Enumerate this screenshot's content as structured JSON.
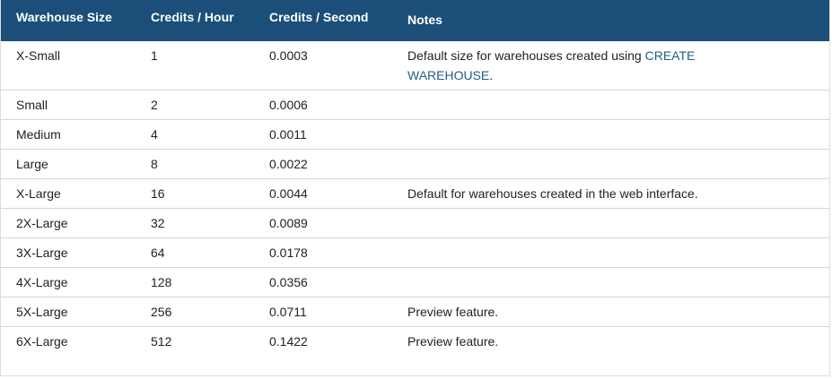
{
  "table": {
    "header_color": "#1b4f79",
    "link_color": "#1f5f86",
    "columns": [
      "Warehouse Size",
      "Credits / Hour",
      "Credits / Second",
      "Notes"
    ],
    "rows": [
      {
        "size": "X-Small",
        "credits_hour": "1",
        "credits_second": "0.0003",
        "notes": "Default size for warehouses created using ",
        "notes_link": "CREATE WAREHOUSE",
        "notes_after": "."
      },
      {
        "size": "Small",
        "credits_hour": "2",
        "credits_second": "0.0006",
        "notes": ""
      },
      {
        "size": "Medium",
        "credits_hour": "4",
        "credits_second": "0.0011",
        "notes": ""
      },
      {
        "size": "Large",
        "credits_hour": "8",
        "credits_second": "0.0022",
        "notes": ""
      },
      {
        "size": "X-Large",
        "credits_hour": "16",
        "credits_second": "0.0044",
        "notes": "Default for warehouses created in the web interface."
      },
      {
        "size": "2X-Large",
        "credits_hour": "32",
        "credits_second": "0.0089",
        "notes": ""
      },
      {
        "size": "3X-Large",
        "credits_hour": "64",
        "credits_second": "0.0178",
        "notes": ""
      },
      {
        "size": "4X-Large",
        "credits_hour": "128",
        "credits_second": "0.0356",
        "notes": ""
      },
      {
        "size": "5X-Large",
        "credits_hour": "256",
        "credits_second": "0.0711",
        "notes": "Preview feature."
      },
      {
        "size": "6X-Large",
        "credits_hour": "512",
        "credits_second": "0.1422",
        "notes": "Preview feature."
      }
    ]
  }
}
